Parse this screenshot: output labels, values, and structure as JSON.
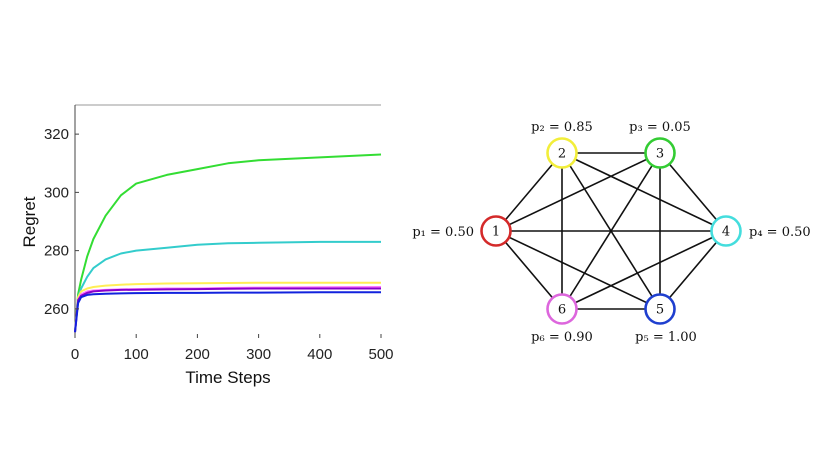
{
  "chart_data": [
    {
      "type": "line",
      "xlabel": "Time Steps",
      "ylabel": "Regret",
      "xlim": [
        0,
        500
      ],
      "ylim": [
        250,
        330
      ],
      "xticks": [
        0,
        100,
        200,
        300,
        400,
        500
      ],
      "yticks": [
        260,
        280,
        300,
        320
      ],
      "grid": false,
      "legend": "none",
      "x": [
        0,
        5,
        10,
        20,
        30,
        50,
        75,
        100,
        150,
        200,
        250,
        300,
        400,
        500
      ],
      "series": [
        {
          "color": "#33dd33",
          "values": [
            252,
            265,
            270,
            278,
            284,
            292,
            299,
            303,
            306,
            308,
            310,
            311,
            312,
            313
          ]
        },
        {
          "color": "#33cccc",
          "values": [
            252,
            264,
            267,
            271,
            274,
            277,
            279,
            280,
            281,
            282,
            282.5,
            282.7,
            283,
            283
          ]
        },
        {
          "color": "#ffee55",
          "values": [
            252,
            264,
            266,
            267,
            267.5,
            268,
            268.3,
            268.5,
            268.7,
            268.8,
            268.9,
            269,
            269,
            269
          ]
        },
        {
          "color": "#ff77ff",
          "values": [
            252,
            263,
            265,
            266,
            266.3,
            266.5,
            266.7,
            266.8,
            267,
            267,
            267.2,
            267.3,
            267.4,
            267.5
          ]
        },
        {
          "color": "#8800cc",
          "values": [
            252,
            263,
            264.5,
            265.5,
            266,
            266.3,
            266.5,
            266.6,
            266.7,
            266.8,
            266.9,
            267,
            267,
            267
          ]
        },
        {
          "color": "#1122dd",
          "values": [
            252,
            262,
            264,
            264.8,
            265,
            265.2,
            265.3,
            265.4,
            265.5,
            265.5,
            265.6,
            265.6,
            265.7,
            265.7
          ]
        }
      ]
    }
  ],
  "graph": {
    "nodes": [
      {
        "id": "1",
        "label": "p₁ = 0.50",
        "color": "#d42a2a"
      },
      {
        "id": "2",
        "label": "p₂ = 0.85",
        "color": "#f2ee3a"
      },
      {
        "id": "3",
        "label": "p₃ = 0.05",
        "color": "#33cc33"
      },
      {
        "id": "4",
        "label": "p₄ = 0.50",
        "color": "#44dddd"
      },
      {
        "id": "5",
        "label": "p₅ = 1.00",
        "color": "#1f3fcf"
      },
      {
        "id": "6",
        "label": "p₆ = 0.90",
        "color": "#dd66dd"
      }
    ],
    "edges": [
      [
        "1",
        "2"
      ],
      [
        "1",
        "3"
      ],
      [
        "1",
        "4"
      ],
      [
        "1",
        "5"
      ],
      [
        "1",
        "6"
      ],
      [
        "2",
        "3"
      ],
      [
        "2",
        "4"
      ],
      [
        "2",
        "5"
      ],
      [
        "2",
        "6"
      ],
      [
        "3",
        "4"
      ],
      [
        "3",
        "5"
      ],
      [
        "3",
        "6"
      ],
      [
        "4",
        "5"
      ],
      [
        "4",
        "6"
      ],
      [
        "5",
        "6"
      ]
    ]
  }
}
